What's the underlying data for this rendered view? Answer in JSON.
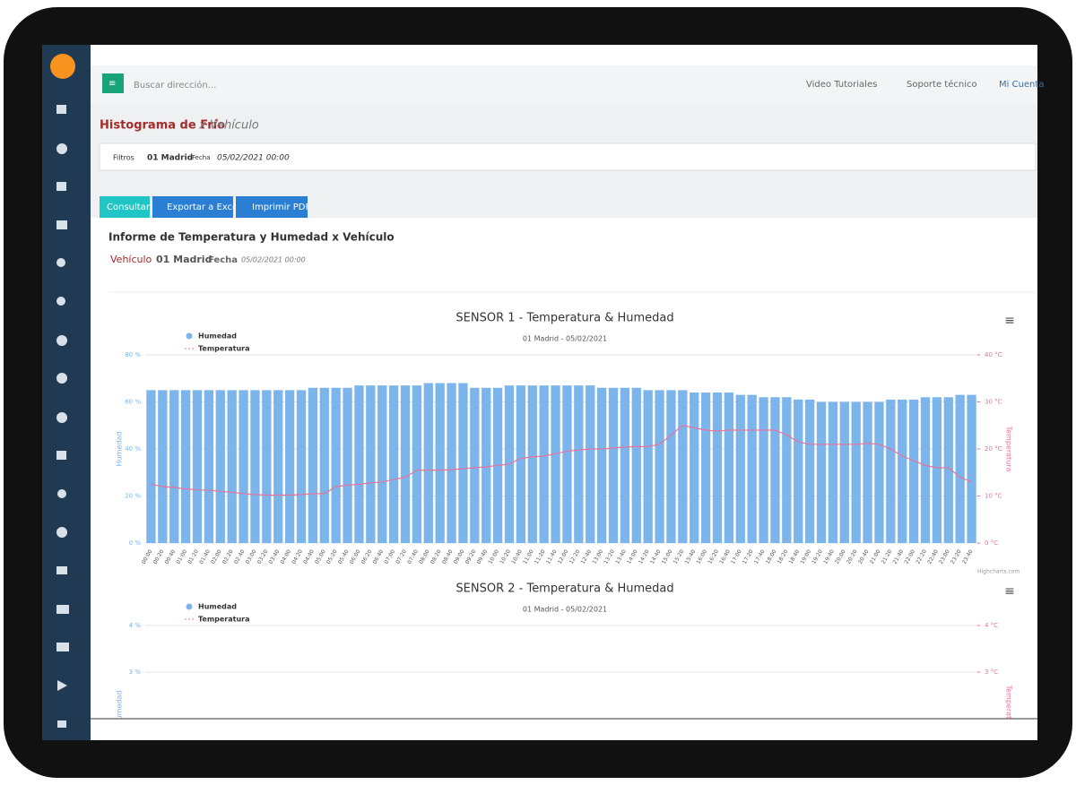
{
  "ui": {
    "search_placeholder": "Buscar dirección...",
    "links": [
      "Video Tutoriales",
      "Soporte técnico",
      "Mi Cuenta"
    ],
    "page_title": "Histograma de Frío",
    "page_subtitle": "x Vehículo",
    "filter": {
      "button": "Filtros",
      "vehicle": "01 Madrid",
      "date_label": "Fecha",
      "date": "05/02/2021 00:00"
    },
    "buttons": [
      "Consultar",
      "Exportar a Excel",
      "Imprimir PDF"
    ],
    "report": {
      "title": "Informe de Temperatura y Humedad x Vehículo",
      "vehicle_label": "Vehículo",
      "vehicle": "01 Madrid",
      "date_label": "Fecha",
      "date": "05/02/2021 00:00"
    },
    "credit": "Highcharts.com"
  },
  "chart_data": [
    {
      "type": "bar",
      "title": "SENSOR 1 - Temperatura & Humedad",
      "subtitle": "01 Madrid - 05/02/2021",
      "y_label": "Humedad",
      "y2_label": "Temperatura",
      "categories": [
        "00:00",
        "00:20",
        "00:40",
        "01:00",
        "01:20",
        "01:40",
        "02:00",
        "02:20",
        "02:40",
        "03:00",
        "03:20",
        "03:40",
        "04:00",
        "04:20",
        "04:40",
        "05:00",
        "05:20",
        "05:40",
        "06:00",
        "06:20",
        "06:40",
        "07:00",
        "07:20",
        "07:40",
        "08:00",
        "08:20",
        "08:40",
        "09:00",
        "09:20",
        "09:40",
        "10:00",
        "10:20",
        "10:40",
        "11:00",
        "11:20",
        "11:40",
        "12:00",
        "12:20",
        "12:40",
        "13:00",
        "13:20",
        "13:40",
        "14:00",
        "14:20",
        "14:40",
        "15:00",
        "15:20",
        "15:40",
        "16:00",
        "16:20",
        "16:40",
        "17:00",
        "17:20",
        "17:40",
        "18:00",
        "18:20",
        "18:40",
        "19:00",
        "19:20",
        "19:40",
        "20:00",
        "20:20",
        "20:40",
        "21:00",
        "21:20",
        "21:40",
        "22:00",
        "22:20",
        "22:40",
        "23:00",
        "23:20",
        "23:40"
      ],
      "series": [
        {
          "name": "Humedad",
          "color": "#7cb5ec",
          "values": [
            65,
            65,
            65,
            65,
            65,
            65,
            65,
            65,
            65,
            65,
            65,
            65,
            65,
            65,
            66,
            66,
            66,
            66,
            67,
            67,
            67,
            67,
            67,
            67,
            68,
            68,
            68,
            68,
            66,
            66,
            66,
            67,
            67,
            67,
            67,
            67,
            67,
            67,
            67,
            66,
            66,
            66,
            66,
            65,
            65,
            65,
            65,
            64,
            64,
            64,
            64,
            63,
            63,
            62,
            62,
            62,
            61,
            61,
            60,
            60,
            60,
            60,
            60,
            60,
            61,
            61,
            61,
            62,
            62,
            62,
            63,
            63
          ]
        },
        {
          "name": "Temperatura",
          "color": "#e8739a",
          "type": "line",
          "axis": "y2",
          "values": [
            12.5,
            12,
            11.8,
            11.5,
            11.3,
            11.2,
            11,
            10.8,
            10.5,
            10.3,
            10.2,
            10.2,
            10.2,
            10.3,
            10.5,
            10.5,
            12,
            12.3,
            12.5,
            12.8,
            13,
            13.5,
            14,
            15.5,
            15.5,
            15.5,
            15.6,
            15.8,
            16,
            16.2,
            16.5,
            16.8,
            18,
            18.3,
            18.5,
            19,
            19.5,
            19.8,
            20,
            20,
            20.2,
            20.4,
            20.5,
            20.5,
            21,
            23,
            25,
            24.5,
            24,
            23.8,
            24,
            24,
            24,
            24,
            24,
            23,
            21.5,
            21,
            21,
            21,
            21,
            21,
            21.2,
            21,
            20,
            18.5,
            17.5,
            16.5,
            16,
            16,
            14,
            13
          ]
        }
      ],
      "ylim": [
        0,
        80
      ],
      "yticks": [
        {
          "value": 0,
          "label": "0 %"
        },
        {
          "value": 20,
          "label": "20 %"
        },
        {
          "value": 40,
          "label": "40 %"
        },
        {
          "value": 60,
          "label": "60 %"
        },
        {
          "value": 80,
          "label": "80 %"
        }
      ],
      "y2lim": [
        0,
        40
      ],
      "y2ticks": [
        {
          "value": 0,
          "label": "0 °C"
        },
        {
          "value": 10,
          "label": "10 °C"
        },
        {
          "value": 20,
          "label": "20 °C"
        },
        {
          "value": 30,
          "label": "30 °C"
        },
        {
          "value": 40,
          "label": "40 °C"
        }
      ],
      "grid": true
    },
    {
      "type": "bar",
      "title": "SENSOR 2 - Temperatura & Humedad",
      "subtitle": "01 Madrid - 05/02/2021",
      "y_label": "Humedad",
      "y2_label": "Temperatura",
      "series": [
        {
          "name": "Humedad",
          "color": "#7cb5ec"
        },
        {
          "name": "Temperatura",
          "color": "#e8739a",
          "type": "line",
          "axis": "y2"
        }
      ],
      "ylim": [
        0,
        4
      ],
      "yticks": [
        {
          "value": 3,
          "label": "3 %"
        },
        {
          "value": 4,
          "label": "4 %"
        }
      ],
      "y2lim": [
        0,
        4
      ],
      "y2ticks": [
        {
          "value": 3,
          "label": "3 °C"
        },
        {
          "value": 4,
          "label": "4 °C"
        }
      ],
      "grid": true
    }
  ]
}
